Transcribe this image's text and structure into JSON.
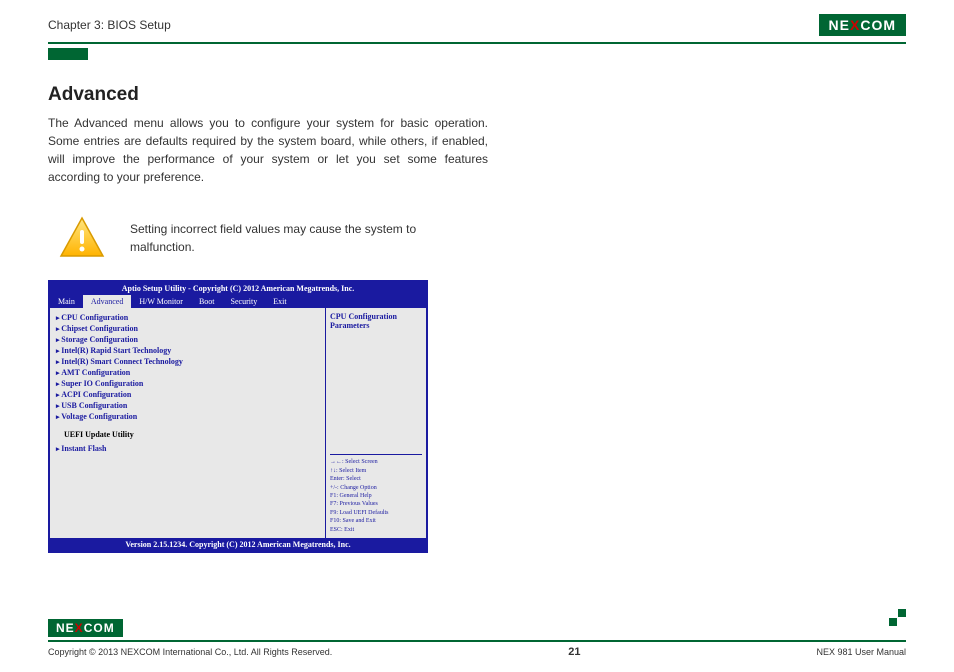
{
  "header": {
    "chapter": "Chapter 3: BIOS Setup",
    "logo": {
      "pre": "NE",
      "x": "X",
      "post": "COM"
    }
  },
  "section": {
    "title": "Advanced",
    "desc": "The Advanced menu allows you to configure your system for basic operation. Some entries are defaults required by the system board, while others, if enabled, will improve the performance of your system or let you set some features according to your preference."
  },
  "warning": {
    "text": "Setting incorrect field values may cause the system to malfunction.",
    "icon_fill": "#ffcc33",
    "icon_border": "#d99a00"
  },
  "bios": {
    "title": "Aptio Setup Utility - Copyright (C) 2012 American Megatrends, Inc.",
    "tabs": [
      "Main",
      "Advanced",
      "H/W Monitor",
      "Boot",
      "Security",
      "Exit"
    ],
    "active_tab": 1,
    "items": [
      "CPU Configuration",
      "Chipset Configuration",
      "Storage Configuration",
      "Intel(R) Rapid Start Technology",
      "Intel(R) Smart Connect Technology",
      "AMT Configuration",
      "Super IO Configuration",
      "ACPI Configuration",
      "USB Configuration",
      "Voltage Configuration"
    ],
    "subtitle": "UEFI Update Utility",
    "items2": [
      "Instant Flash"
    ],
    "help_title": "CPU Configuration Parameters",
    "keys": [
      "→←: Select Screen",
      "↑↓: Select Item",
      "Enter: Select",
      "+/-: Change Option",
      "F1: General Help",
      "F7: Previous Values",
      "F9: Load UEFI Defaults",
      "F10: Save and Exit",
      "ESC: Exit"
    ],
    "footer": "Version 2.15.1234. Copyright (C) 2012 American Megatrends, Inc.",
    "colors": {
      "frame": "#1a1aa0",
      "bg": "#e8e8e8"
    }
  },
  "footer": {
    "copyright": "Copyright © 2013 NEXCOM International Co., Ltd. All Rights Reserved.",
    "page": "21",
    "manual": "NEX 981 User Manual"
  }
}
